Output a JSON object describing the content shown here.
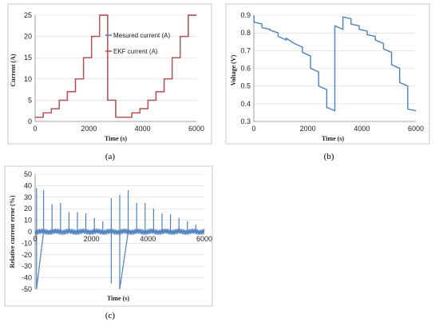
{
  "chart_data": [
    {
      "id": "a",
      "type": "line",
      "caption": "(a)",
      "xlabel": "Time (s)",
      "ylabel": "Current (A)",
      "xlim": [
        0,
        6000
      ],
      "ylim": [
        0,
        25
      ],
      "xticks": [
        0,
        2000,
        4000,
        6000
      ],
      "yticks": [
        0,
        5,
        10,
        15,
        20,
        25
      ],
      "grid": true,
      "legend_position": "top-right",
      "series": [
        {
          "name": "Mesured current  (A)",
          "color": "#4f81bd",
          "x": [
            0,
            300,
            300,
            600,
            600,
            900,
            900,
            1200,
            1200,
            1500,
            1500,
            1800,
            1800,
            2100,
            2100,
            2400,
            2400,
            2700,
            2700,
            3000,
            3000,
            3300,
            3300,
            3600,
            3600,
            3900,
            3900,
            4200,
            4200,
            4500,
            4500,
            4800,
            4800,
            5100,
            5100,
            5400,
            5400,
            5700,
            5700,
            6000
          ],
          "y": [
            1,
            1,
            2,
            2,
            3,
            3,
            5,
            5,
            7,
            7,
            10,
            10,
            15,
            15,
            20,
            20,
            25,
            25,
            5,
            5,
            1,
            1,
            1,
            1,
            2,
            2,
            3,
            3,
            5,
            5,
            7,
            7,
            10,
            10,
            15,
            15,
            20,
            20,
            25,
            25
          ]
        },
        {
          "name": "EKF current (A)",
          "color": "#c0504d",
          "x": [
            0,
            300,
            300,
            600,
            600,
            900,
            900,
            1200,
            1200,
            1500,
            1500,
            1800,
            1800,
            2100,
            2100,
            2400,
            2400,
            2700,
            2700,
            3000,
            3000,
            3300,
            3300,
            3600,
            3600,
            3900,
            3900,
            4200,
            4200,
            4500,
            4500,
            4800,
            4800,
            5100,
            5100,
            5400,
            5400,
            5700,
            5700,
            6000
          ],
          "y": [
            1,
            1,
            2,
            2,
            3,
            3,
            5,
            5,
            7,
            7,
            10,
            10,
            15,
            15,
            20,
            20,
            25,
            25,
            5,
            5,
            1,
            1,
            1,
            1,
            2,
            2,
            3,
            3,
            5,
            5,
            7,
            7,
            10,
            10,
            15,
            15,
            20,
            20,
            25,
            25
          ]
        }
      ]
    },
    {
      "id": "b",
      "type": "line",
      "caption": "(b)",
      "xlabel": "Time (s)",
      "ylabel": "Voltage (V)",
      "xlim": [
        0,
        6000
      ],
      "ylim": [
        0.3,
        0.9
      ],
      "xticks": [
        0,
        2000,
        4000,
        6000
      ],
      "yticks": [
        0.3,
        0.4,
        0.5,
        0.6,
        0.7,
        0.8,
        0.9
      ],
      "grid": true,
      "series": [
        {
          "name": "",
          "color": "#4f81bd",
          "x": [
            0,
            10,
            30,
            300,
            300,
            600,
            600,
            900,
            900,
            1200,
            1200,
            1500,
            1500,
            1800,
            1800,
            2100,
            2100,
            2400,
            2400,
            2700,
            2700,
            3000,
            3000,
            3300,
            3300,
            3600,
            3600,
            3900,
            3900,
            4200,
            4200,
            4500,
            4500,
            4800,
            4800,
            5100,
            5100,
            5400,
            5400,
            5700,
            5700,
            6000
          ],
          "y": [
            0.9,
            0.86,
            0.86,
            0.85,
            0.83,
            0.82,
            0.815,
            0.8,
            0.78,
            0.76,
            0.77,
            0.74,
            0.74,
            0.72,
            0.69,
            0.67,
            0.6,
            0.58,
            0.5,
            0.48,
            0.38,
            0.36,
            0.84,
            0.82,
            0.89,
            0.88,
            0.85,
            0.84,
            0.82,
            0.81,
            0.79,
            0.78,
            0.76,
            0.74,
            0.71,
            0.69,
            0.62,
            0.6,
            0.52,
            0.5,
            0.37,
            0.36
          ]
        }
      ]
    },
    {
      "id": "c",
      "type": "line",
      "caption": "(c)",
      "xlabel": "Time (s)",
      "ylabel": "Relative current error (%)",
      "xlim": [
        0,
        6000
      ],
      "ylim": [
        -50,
        50
      ],
      "xticks": [
        0,
        2000,
        4000,
        6000
      ],
      "yticks": [
        -50,
        -40,
        -30,
        -20,
        -10,
        0,
        10,
        20,
        30,
        40,
        50
      ],
      "grid": true,
      "series": [
        {
          "name": "",
          "color": "#4f81bd",
          "x": [
            0,
            50,
            50,
            50,
            300,
            300,
            300,
            600,
            600,
            600,
            900,
            900,
            900,
            1200,
            1200,
            1200,
            1500,
            1500,
            1500,
            1800,
            1800,
            1800,
            2100,
            2100,
            2100,
            2400,
            2400,
            2400,
            2700,
            2700,
            2700,
            2700,
            3000,
            3000,
            3000,
            3300,
            3300,
            3300,
            3600,
            3600,
            3600,
            3900,
            3900,
            3900,
            4200,
            4200,
            4200,
            4500,
            4500,
            4500,
            4800,
            4800,
            4800,
            5100,
            5100,
            5100,
            5400,
            5400,
            5400,
            5700,
            5700,
            5700,
            6000
          ],
          "y": [
            0,
            0,
            38,
            -50,
            0,
            36,
            0,
            0,
            24,
            0,
            0,
            25,
            0,
            0,
            17,
            0,
            0,
            17,
            0,
            0,
            16,
            0,
            0,
            12,
            0,
            0,
            9,
            0,
            0,
            29,
            -45,
            0,
            0,
            32,
            -50,
            0,
            36,
            0,
            0,
            25,
            0,
            0,
            25,
            0,
            0,
            20,
            0,
            0,
            16,
            0,
            0,
            15,
            0,
            0,
            12,
            0,
            0,
            9,
            0,
            0,
            6,
            0,
            0
          ]
        }
      ]
    }
  ]
}
